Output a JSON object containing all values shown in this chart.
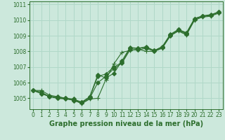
{
  "background_color": "#cce8dc",
  "plot_bg_color": "#cce8dc",
  "line_color": "#2d6e2d",
  "marker_color": "#2d6e2d",
  "grid_color": "#b0d8c8",
  "xlabel": "Graphe pression niveau de la mer (hPa)",
  "xlabel_fontsize": 7,
  "ylim": [
    1004.3,
    1011.2
  ],
  "xlim": [
    -0.5,
    23.5
  ],
  "yticks": [
    1005,
    1006,
    1007,
    1008,
    1009,
    1010,
    1011
  ],
  "xticks": [
    0,
    1,
    2,
    3,
    4,
    5,
    6,
    7,
    8,
    9,
    10,
    11,
    12,
    13,
    14,
    15,
    16,
    17,
    18,
    19,
    20,
    21,
    22,
    23
  ],
  "series": [
    [
      1005.5,
      1005.5,
      1005.2,
      1005.1,
      1005.0,
      1004.9,
      1004.65,
      1004.95,
      1005.0,
      1006.2,
      1007.2,
      1007.95,
      1008.05,
      1008.15,
      1008.0,
      1008.0,
      1008.2,
      1009.0,
      1009.3,
      1009.05,
      1010.0,
      1010.2,
      1010.25,
      1010.45
    ],
    [
      1005.5,
      1005.3,
      1005.1,
      1005.0,
      1005.0,
      1004.85,
      1004.7,
      1005.0,
      1006.0,
      1006.4,
      1006.9,
      1007.25,
      1008.1,
      1008.1,
      1008.2,
      1008.0,
      1008.25,
      1009.0,
      1009.35,
      1009.1,
      1010.05,
      1010.25,
      1010.3,
      1010.5
    ],
    [
      1005.5,
      1005.3,
      1005.15,
      1005.0,
      1004.95,
      1004.9,
      1004.75,
      1005.05,
      1006.4,
      1006.55,
      1007.0,
      1007.3,
      1008.2,
      1008.2,
      1008.25,
      1008.05,
      1008.3,
      1009.05,
      1009.4,
      1009.15,
      1010.1,
      1010.28,
      1010.35,
      1010.52
    ],
    [
      1005.5,
      1005.4,
      1005.1,
      1005.1,
      1005.0,
      1004.95,
      1004.75,
      1005.1,
      1006.5,
      1006.3,
      1006.6,
      1007.4,
      1008.25,
      1008.2,
      1008.3,
      1008.05,
      1008.3,
      1009.1,
      1009.4,
      1009.2,
      1010.1,
      1010.25,
      1010.3,
      1010.55
    ]
  ],
  "tick_fontsize": 5.5,
  "tick_color": "#2d6e2d"
}
